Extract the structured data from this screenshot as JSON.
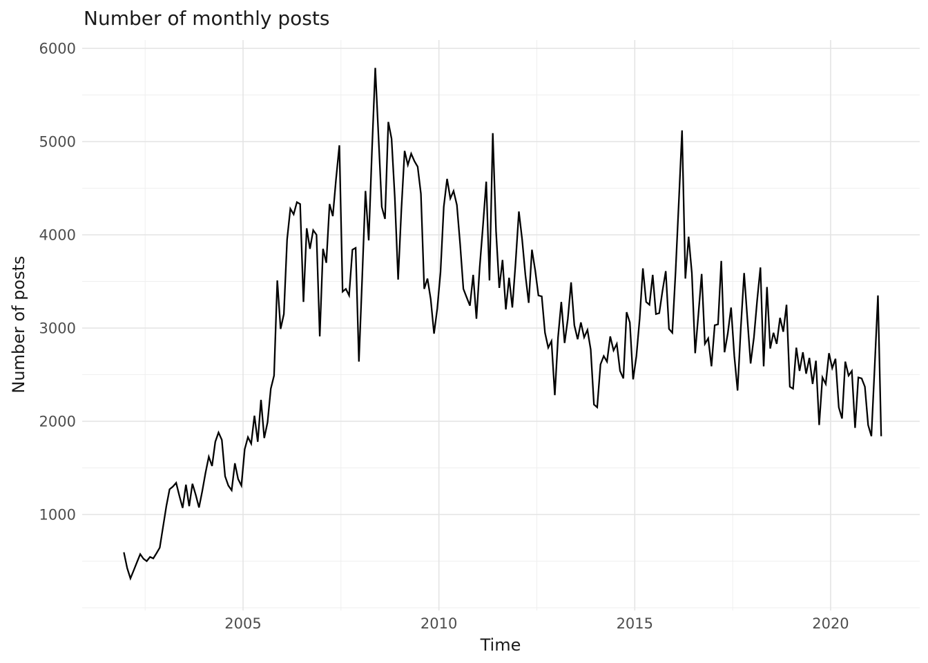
{
  "chart_data": {
    "type": "line",
    "title": "Number of monthly posts",
    "xlabel": "Time",
    "ylabel": "Number of posts",
    "x_ticks": [
      2005,
      2010,
      2015,
      2020
    ],
    "x_minor_ticks": [
      2002.5,
      2007.5,
      2012.5,
      2017.5
    ],
    "y_ticks": [
      1000,
      2000,
      3000,
      4000,
      5000,
      6000
    ],
    "y_minor_ticks": [
      0,
      500,
      1500,
      2500,
      3500,
      4500,
      5500
    ],
    "x_domain": [
      2000.9,
      2022.3
    ],
    "y_domain": [
      30,
      6080
    ],
    "grid": true,
    "legend_position": "none",
    "line_color": "#000000",
    "grid_major_color": "#e4e4e4",
    "grid_minor_color": "#efefef",
    "tick_label_color": "#4d4d4d",
    "title_color": "#1a1a1a",
    "background_color": "#ffffff",
    "series": [
      {
        "name": "monthly posts",
        "frequency": "monthly",
        "start": {
          "year": 2001,
          "month": 12
        },
        "values": [
          595,
          425,
          315,
          400,
          490,
          575,
          525,
          500,
          545,
          530,
          585,
          645,
          870,
          1090,
          1270,
          1300,
          1340,
          1200,
          1070,
          1320,
          1090,
          1330,
          1210,
          1075,
          1250,
          1445,
          1620,
          1520,
          1780,
          1880,
          1800,
          1410,
          1310,
          1260,
          1550,
          1380,
          1310,
          1700,
          1830,
          1760,
          2060,
          1780,
          2230,
          1820,
          1990,
          2350,
          2490,
          3510,
          2990,
          3150,
          3950,
          4280,
          4220,
          4350,
          4330,
          3280,
          4070,
          3850,
          4050,
          4000,
          2910,
          3850,
          3700,
          4330,
          4200,
          4600,
          4960,
          3390,
          3420,
          3350,
          3840,
          3860,
          2640,
          3550,
          4470,
          3940,
          4900,
          5790,
          5050,
          4300,
          4170,
          5210,
          5030,
          4400,
          3520,
          4270,
          4900,
          4750,
          4870,
          4790,
          4730,
          4440,
          3420,
          3530,
          3310,
          2940,
          3210,
          3600,
          4300,
          4600,
          4390,
          4470,
          4320,
          3900,
          3420,
          3330,
          3240,
          3570,
          3100,
          3650,
          4100,
          4570,
          3510,
          5090,
          4040,
          3430,
          3730,
          3200,
          3540,
          3220,
          3700,
          4250,
          3950,
          3570,
          3270,
          3840,
          3620,
          3350,
          3340,
          2950,
          2790,
          2860,
          2280,
          2900,
          3280,
          2840,
          3100,
          3490,
          3030,
          2880,
          3060,
          2900,
          2980,
          2770,
          2180,
          2150,
          2610,
          2700,
          2640,
          2910,
          2760,
          2830,
          2540,
          2460,
          3170,
          3060,
          2450,
          2700,
          3100,
          3640,
          3280,
          3250,
          3570,
          3150,
          3160,
          3400,
          3610,
          2990,
          2950,
          3600,
          4350,
          5120,
          3530,
          3980,
          3590,
          2730,
          3150,
          3580,
          2830,
          2890,
          2590,
          3030,
          3040,
          3720,
          2740,
          2940,
          3220,
          2700,
          2330,
          3000,
          3590,
          3100,
          2620,
          2900,
          3300,
          3650,
          2590,
          3440,
          2780,
          2950,
          2830,
          3110,
          2960,
          3250,
          2370,
          2350,
          2790,
          2540,
          2740,
          2510,
          2680,
          2400,
          2650,
          1960,
          2470,
          2400,
          2730,
          2570,
          2670,
          2150,
          2030,
          2640,
          2490,
          2540,
          1930,
          2470,
          2460,
          2370,
          1960,
          1840,
          2590,
          3350,
          1840
        ]
      }
    ]
  }
}
